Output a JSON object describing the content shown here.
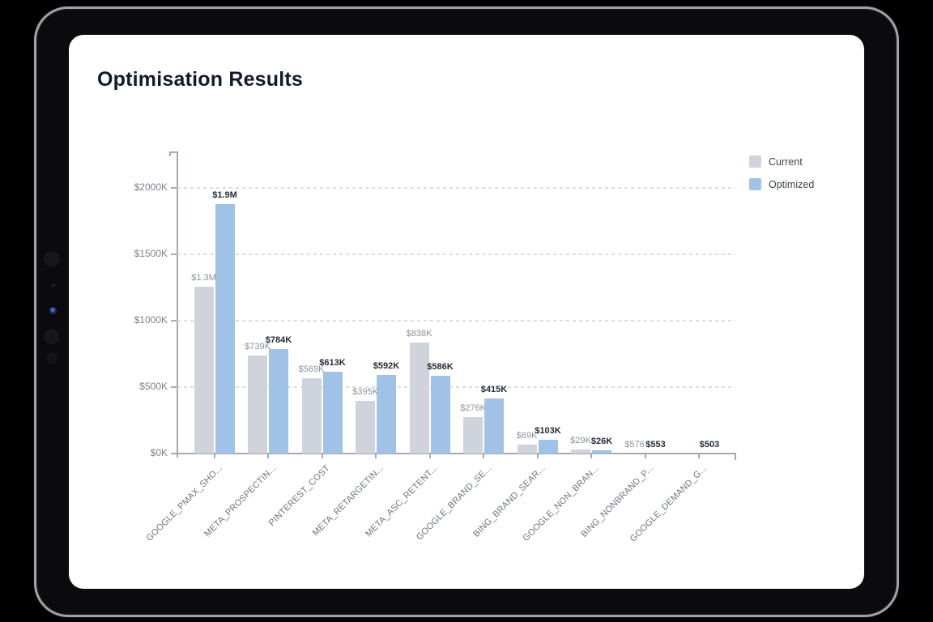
{
  "page": {
    "title": "Optimisation Results"
  },
  "chart_data": {
    "type": "bar",
    "title": "Optimisation Results",
    "categories": [
      "GOOGLE_PMAX_SHO...",
      "META_PROSPECTIN...",
      "PINTEREST_COST",
      "META_RETARGETIN...",
      "META_ASC_RETENT...",
      "GOOGLE_BRAND_SE...",
      "BING_BRAND_SEAR...",
      "GOOGLE_NON_BRAN...",
      "BING_NONBRAND_P...",
      "GOOGLE_DEMAND_G..."
    ],
    "series": [
      {
        "name": "Current",
        "color": "#cfd3db",
        "values_k": [
          1255,
          739,
          569,
          395,
          838,
          276,
          69,
          29,
          0.576,
          0
        ],
        "labels": [
          "$1.3M",
          "$739K",
          "$569K",
          "$395K",
          "$838K",
          "$276K",
          "$69K",
          "$29K",
          "$576",
          ""
        ]
      },
      {
        "name": "Optimized",
        "color": "#a0c2e6",
        "values_k": [
          1880,
          784,
          613,
          592,
          586,
          415,
          103,
          26,
          0.553,
          0.503
        ],
        "labels": [
          "$1.9M",
          "$784K",
          "$613K",
          "$592K",
          "$586K",
          "$415K",
          "$103K",
          "$26K",
          "$553",
          "$503"
        ]
      }
    ],
    "y_axis": {
      "ticks_k": [
        2000,
        1500,
        1000,
        500,
        0
      ],
      "tick_labels": [
        "$2000K",
        "$1500K",
        "$1000K",
        "$500K",
        "$0K"
      ],
      "range_k": [
        0,
        2000
      ]
    },
    "x_axis": {
      "label_rotation_deg": -45
    },
    "grid": "dashed-horizontal",
    "legend_position": "top-right"
  }
}
